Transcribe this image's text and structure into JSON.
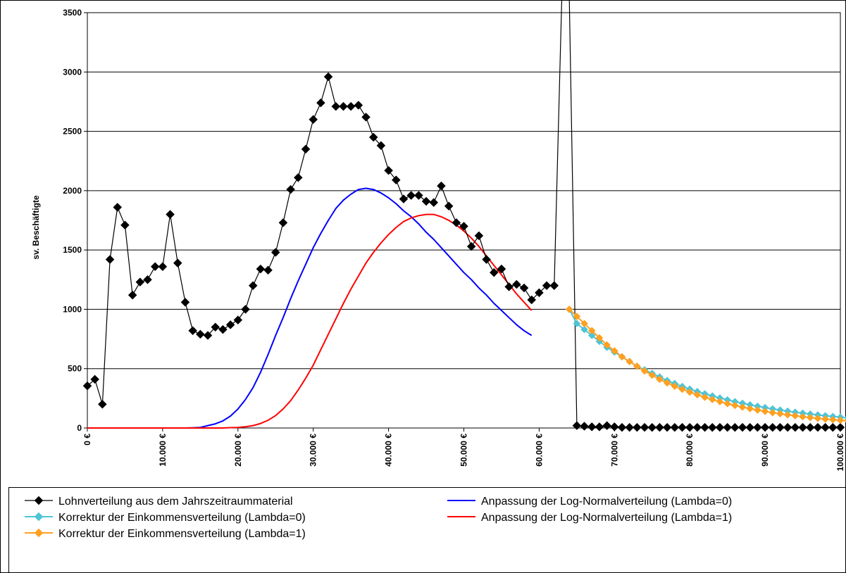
{
  "chart_data": {
    "type": "line",
    "title": "",
    "xlabel": "",
    "ylabel": "sv. Beschäftigte",
    "xlim": [
      0,
      100000
    ],
    "ylim": [
      0,
      3500
    ],
    "grid": "horizontal",
    "legend_position": "bottom",
    "y_ticks": [
      {
        "value": 0,
        "label": "0"
      },
      {
        "value": 500,
        "label": "500"
      },
      {
        "value": 1000,
        "label": "1000"
      },
      {
        "value": 1500,
        "label": "1500"
      },
      {
        "value": 2000,
        "label": "2000"
      },
      {
        "value": 2500,
        "label": "2500"
      },
      {
        "value": 3000,
        "label": "3000"
      },
      {
        "value": 3500,
        "label": "3500"
      }
    ],
    "x_ticks": [
      {
        "value": 0,
        "label": "0 €"
      },
      {
        "value": 10000,
        "label": "10.000 €"
      },
      {
        "value": 20000,
        "label": "20.000 €"
      },
      {
        "value": 30000,
        "label": "30.000 €"
      },
      {
        "value": 40000,
        "label": "40.000 €"
      },
      {
        "value": 50000,
        "label": "50.000 €"
      },
      {
        "value": 60000,
        "label": "60.000 €"
      },
      {
        "value": 70000,
        "label": "70.000 €"
      },
      {
        "value": 80000,
        "label": "80.000 €"
      },
      {
        "value": 90000,
        "label": "90.000 €"
      },
      {
        "value": 100000,
        "label": "100.000 €"
      }
    ],
    "series": [
      {
        "name": "Lohnverteilung aus dem Jahrszeitraummaterial",
        "color": "#000000",
        "marker": "diamond",
        "values": [
          355,
          410,
          200,
          1420,
          1860,
          1710,
          1120,
          1230,
          1250,
          1360,
          1360,
          1800,
          1390,
          1060,
          820,
          790,
          780,
          850,
          830,
          870,
          910,
          1000,
          1200,
          1340,
          1330,
          1480,
          1730,
          2010,
          2110,
          2350,
          2600,
          2740,
          2960,
          2710,
          2710,
          2710,
          2720,
          2620,
          2450,
          2380,
          2170,
          2090,
          1930,
          1960,
          1960,
          1910,
          1900,
          2040,
          1870,
          1730,
          1700,
          1530,
          1620,
          1420,
          1310,
          1340,
          1190,
          1210,
          1180,
          1080,
          1140,
          1200,
          1200,
          5600,
          5600,
          20,
          15,
          10,
          10,
          20,
          10,
          5,
          5,
          5,
          5,
          5,
          5,
          5,
          5,
          5,
          5,
          5,
          5,
          5,
          5,
          5,
          5,
          5,
          5,
          5,
          5,
          5,
          5,
          5,
          5,
          5,
          5,
          5,
          5,
          5,
          5
        ]
      },
      {
        "name": "Anpassung der Log-Normalverteilung (Lambda=0)",
        "color": "#0000ff",
        "marker": "none",
        "values": [
          0,
          0,
          0,
          0,
          0,
          0,
          0,
          0,
          0,
          0,
          0,
          0,
          0,
          0,
          2,
          5,
          20,
          35,
          60,
          100,
          160,
          240,
          340,
          470,
          620,
          780,
          930,
          1090,
          1240,
          1380,
          1520,
          1640,
          1750,
          1850,
          1920,
          1970,
          2010,
          2020,
          2010,
          1980,
          1940,
          1890,
          1830,
          1780,
          1720,
          1650,
          1590,
          1520,
          1450,
          1380,
          1310,
          1250,
          1180,
          1120,
          1050,
          990,
          930,
          870,
          820,
          780
        ]
      },
      {
        "name": "Korrektur der Einkommensverteilung (Lambda=0)",
        "color": "#4ec4d6",
        "marker": "diamond",
        "values": [
          1000,
          880,
          830,
          780,
          730,
          680,
          640,
          600,
          560,
          520,
          490,
          460,
          430,
          400,
          375,
          350,
          328,
          307,
          288,
          270,
          253,
          237,
          222,
          208,
          195,
          183,
          172,
          161,
          151,
          142,
          133,
          125,
          117,
          110,
          103,
          97,
          91,
          85
        ]
      },
      {
        "name": "Anpassung der Log-Normalverteilung (Lambda=1)",
        "color": "#ff0000",
        "marker": "none",
        "values": [
          0,
          0,
          0,
          0,
          0,
          0,
          0,
          0,
          0,
          0,
          0,
          0,
          0,
          0,
          0,
          0,
          0,
          0,
          0,
          3,
          5,
          10,
          20,
          38,
          65,
          105,
          160,
          230,
          320,
          420,
          530,
          660,
          790,
          920,
          1050,
          1170,
          1280,
          1390,
          1480,
          1560,
          1630,
          1690,
          1740,
          1770,
          1790,
          1800,
          1800,
          1780,
          1750,
          1710,
          1660,
          1600,
          1530,
          1450,
          1370,
          1290,
          1210,
          1130,
          1060,
          990
        ]
      },
      {
        "name": "Korrektur der Einkommensverteilung (Lambda=1)",
        "color": "#ffa020",
        "marker": "diamond",
        "values": [
          1000,
          940,
          880,
          820,
          760,
          700,
          650,
          600,
          560,
          520,
          480,
          445,
          410,
          380,
          352,
          326,
          302,
          280,
          259,
          240,
          222,
          205,
          190,
          176,
          163,
          151,
          140,
          129,
          120,
          111,
          103,
          95,
          88,
          81,
          75,
          70,
          65,
          60
        ]
      }
    ]
  }
}
